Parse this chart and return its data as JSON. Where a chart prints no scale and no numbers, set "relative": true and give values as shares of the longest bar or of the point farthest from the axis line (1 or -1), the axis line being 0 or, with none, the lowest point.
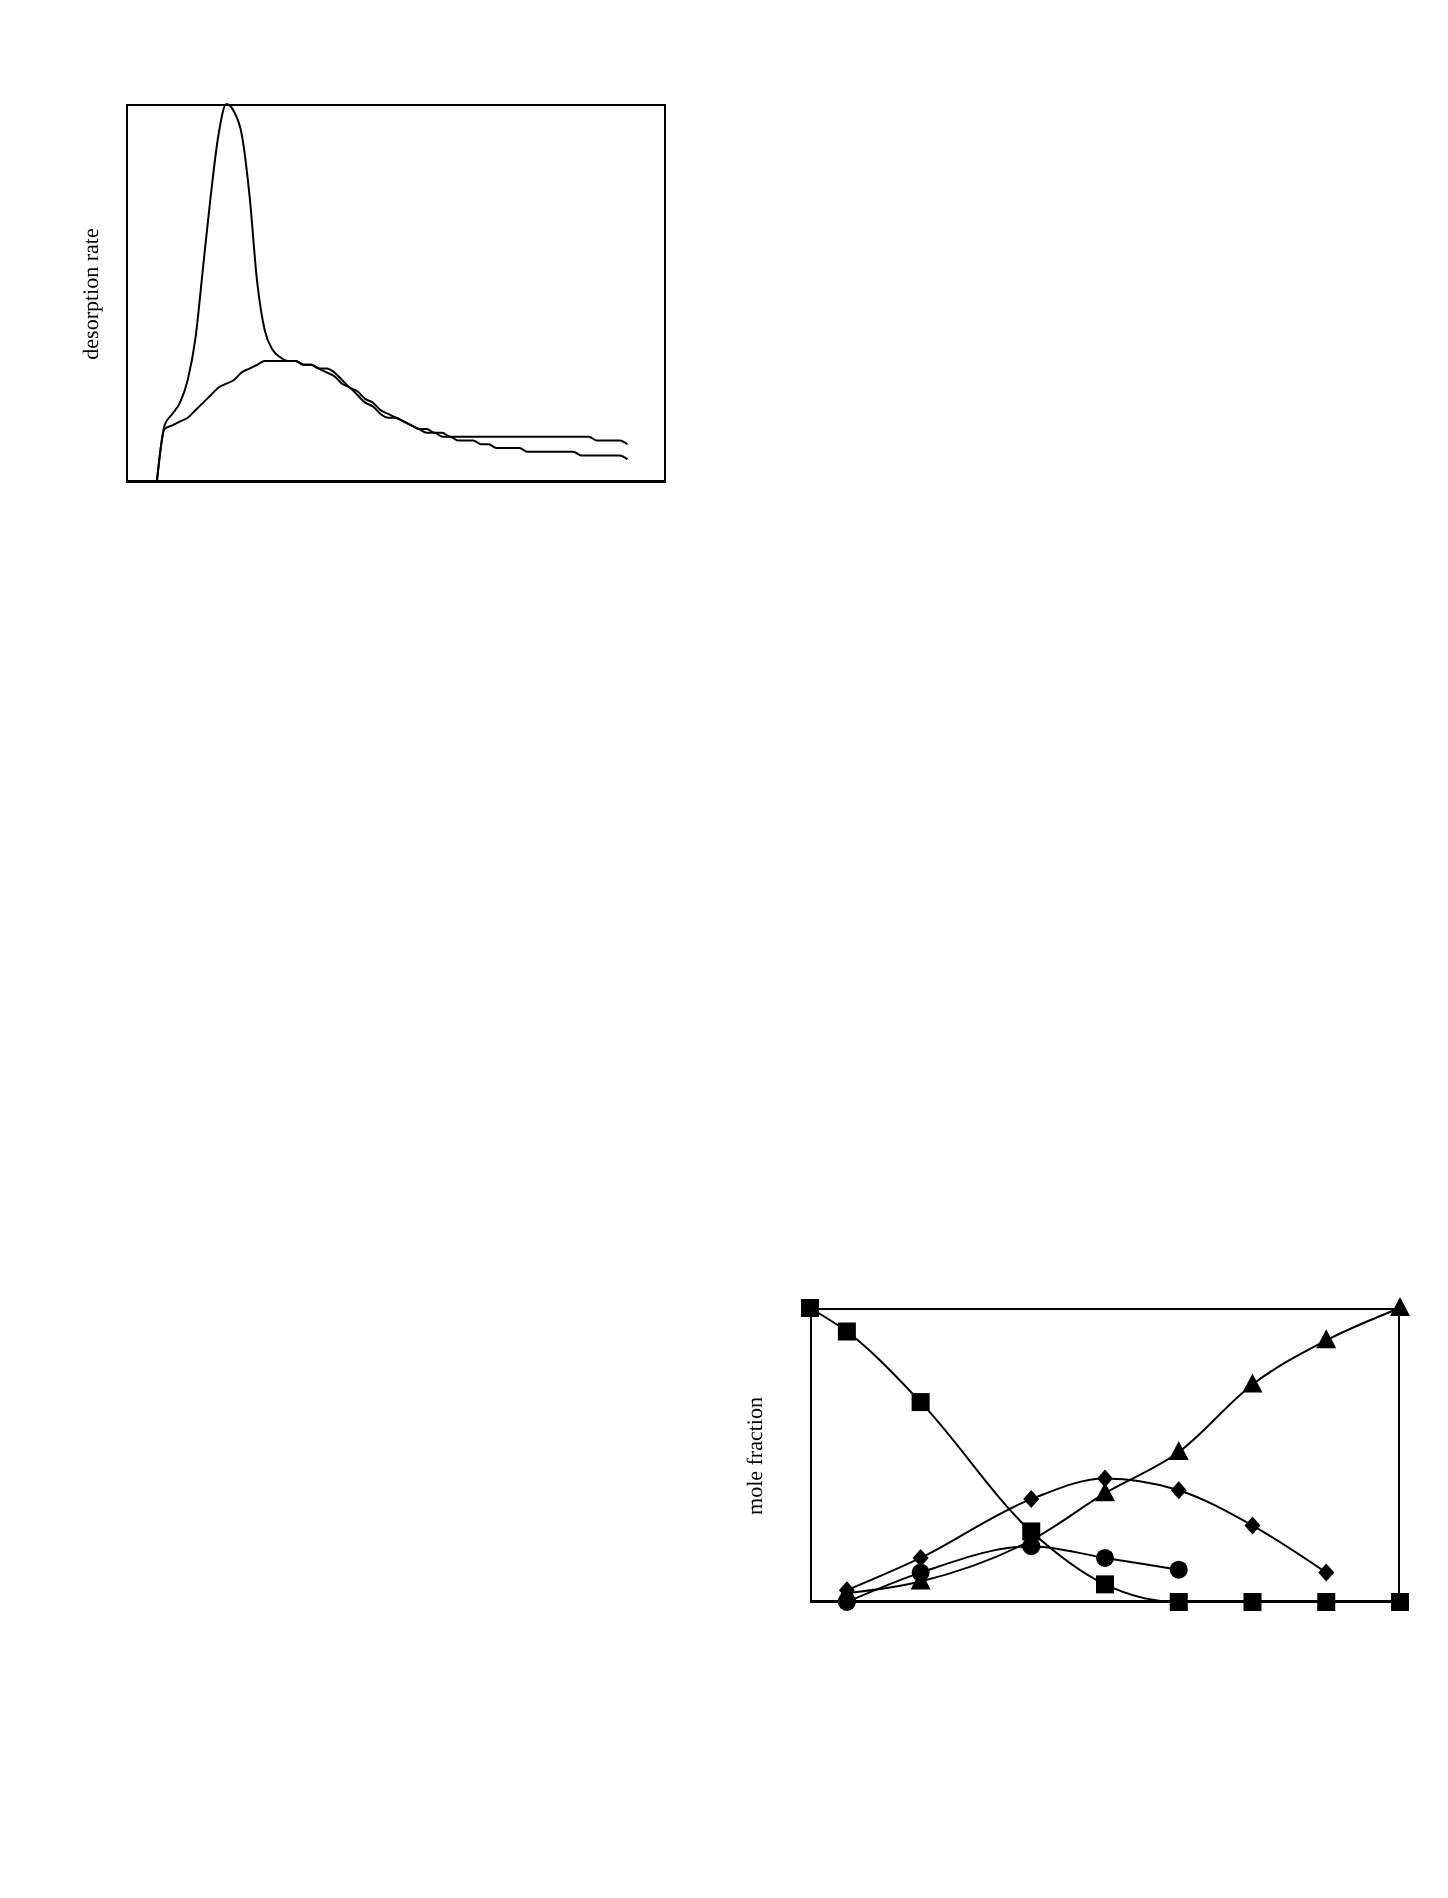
{
  "chart_data": [
    {
      "type": "line",
      "ylabel": "desorption rate",
      "relative": true,
      "tick_labels": false,
      "marker": "none",
      "categories": [
        null,
        null,
        null,
        null,
        null,
        null,
        null,
        null,
        null,
        null,
        null,
        null,
        null,
        null,
        null,
        null,
        null,
        null,
        null,
        null,
        null,
        null,
        null,
        null,
        null,
        null,
        null,
        null,
        null,
        null,
        null,
        null,
        null,
        null,
        null,
        null,
        null,
        null,
        null,
        null,
        null,
        null,
        null,
        null,
        null,
        null,
        null,
        null,
        null,
        null,
        null,
        null,
        null,
        null,
        null,
        null,
        null,
        null,
        null,
        null,
        null,
        null,
        null,
        null,
        null,
        null,
        null,
        null,
        null,
        null,
        null
      ],
      "series": [
        {
          "color": "#000000",
          "values": [
            null,
            null,
            null,
            null,
            0,
            0.15,
            0.18,
            0.21,
            0.27,
            0.38,
            0.57,
            0.76,
            0.92,
            1,
            0.98,
            0.92,
            0.76,
            0.53,
            0.4,
            0.35,
            0.33,
            0.32,
            0.32,
            0.31,
            0.31,
            0.3,
            0.3,
            0.29,
            0.27,
            0.25,
            0.24,
            0.22,
            0.21,
            0.19,
            0.18,
            0.17,
            0.16,
            0.15,
            0.14,
            0.14,
            0.13,
            0.13,
            0.12,
            0.12,
            0.12,
            0.12,
            0.12,
            0.12,
            0.12,
            0.12,
            0.12,
            0.12,
            0.12,
            0.12,
            0.12,
            0.12,
            0.12,
            0.12,
            0.12,
            0.12,
            0.12,
            0.11,
            0.11,
            0.11,
            0.11,
            0.1,
            null,
            null,
            null,
            null,
            null
          ]
        },
        {
          "color": "#000000",
          "values": [
            null,
            null,
            null,
            null,
            0,
            0.14,
            0.15,
            0.16,
            0.17,
            0.19,
            0.21,
            0.23,
            0.25,
            0.26,
            0.27,
            0.29,
            0.3,
            0.31,
            0.32,
            0.32,
            0.32,
            0.32,
            0.32,
            0.31,
            0.31,
            0.3,
            0.29,
            0.28,
            0.26,
            0.25,
            0.23,
            0.21,
            0.2,
            0.18,
            0.17,
            0.17,
            0.16,
            0.15,
            0.14,
            0.13,
            0.13,
            0.12,
            0.12,
            0.11,
            0.11,
            0.11,
            0.1,
            0.1,
            0.09,
            0.09,
            0.09,
            0.09,
            0.08,
            0.08,
            0.08,
            0.08,
            0.08,
            0.08,
            0.08,
            0.07,
            0.07,
            0.07,
            0.07,
            0.07,
            0.07,
            0.06,
            null,
            null,
            null,
            null,
            null
          ]
        }
      ]
    },
    {
      "type": "line",
      "ylabel": "mole fraction",
      "relative": true,
      "tick_labels": false,
      "categories": [
        null,
        null,
        null,
        null,
        null,
        null,
        null,
        null,
        null,
        null,
        null,
        null,
        null,
        null,
        null,
        null,
        null
      ],
      "series": [
        {
          "color": "#000000",
          "marker": "square",
          "values": [
            1,
            0.92,
            null,
            0.68,
            null,
            null,
            0.24,
            null,
            0.06,
            null,
            0,
            null,
            0,
            null,
            0,
            null,
            0
          ]
        },
        {
          "color": "#000000",
          "marker": "triangle",
          "values": [
            null,
            0.03,
            null,
            0.07,
            null,
            null,
            0.21,
            null,
            0.37,
            null,
            0.51,
            null,
            0.74,
            null,
            0.89,
            null,
            1
          ]
        },
        {
          "color": "#000000",
          "marker": "diamond",
          "values": [
            null,
            0.04,
            null,
            0.15,
            null,
            null,
            0.35,
            null,
            0.42,
            null,
            0.38,
            null,
            0.26,
            null,
            0.1,
            null,
            null
          ]
        },
        {
          "color": "#000000",
          "marker": "circle",
          "values": [
            null,
            0,
            null,
            0.1,
            null,
            null,
            0.19,
            null,
            0.15,
            null,
            0.11,
            null,
            null,
            null,
            null,
            null,
            null
          ]
        }
      ]
    }
  ]
}
